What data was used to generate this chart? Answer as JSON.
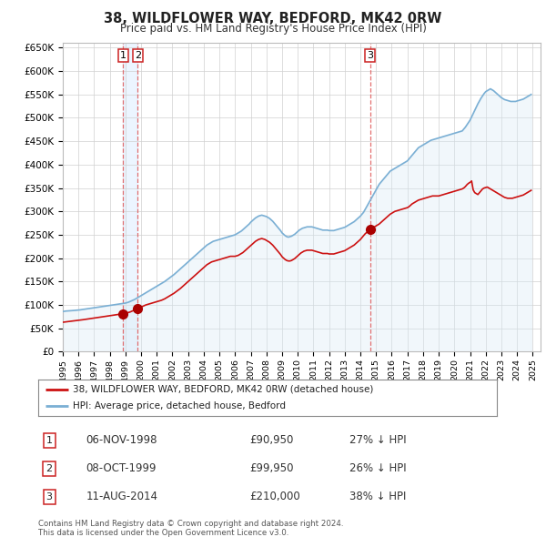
{
  "title": "38, WILDFLOWER WAY, BEDFORD, MK42 0RW",
  "subtitle": "Price paid vs. HM Land Registry's House Price Index (HPI)",
  "ylim": [
    0,
    660000
  ],
  "yticks": [
    0,
    50000,
    100000,
    150000,
    200000,
    250000,
    300000,
    350000,
    400000,
    450000,
    500000,
    550000,
    600000,
    650000
  ],
  "background_color": "#ffffff",
  "grid_color": "#d0d0d0",
  "hpi_color": "#7aafd4",
  "hpi_fill_color": "#d8eaf6",
  "price_color": "#cc1111",
  "sale_marker_color": "#aa0000",
  "vline_color": "#e06060",
  "vline_fill": "#ddeeff",
  "legend_label_price": "38, WILDFLOWER WAY, BEDFORD, MK42 0RW (detached house)",
  "legend_label_hpi": "HPI: Average price, detached house, Bedford",
  "transactions": [
    {
      "num": 1,
      "date": "06-NOV-1998",
      "price": 90950,
      "pct": "27% ↓ HPI",
      "x_year": 1998.84
    },
    {
      "num": 2,
      "date": "08-OCT-1999",
      "price": 99950,
      "pct": "26% ↓ HPI",
      "x_year": 1999.78
    },
    {
      "num": 3,
      "date": "11-AUG-2014",
      "price": 210000,
      "pct": "38% ↓ HPI",
      "x_year": 2014.61
    }
  ],
  "footer": "Contains HM Land Registry data © Crown copyright and database right 2024.\nThis data is licensed under the Open Government Licence v3.0.",
  "xlim": [
    1995.0,
    2025.5
  ],
  "x_tick_years": [
    1995,
    1996,
    1997,
    1998,
    1999,
    2000,
    2001,
    2002,
    2003,
    2004,
    2005,
    2006,
    2007,
    2008,
    2009,
    2010,
    2011,
    2012,
    2013,
    2014,
    2015,
    2016,
    2017,
    2018,
    2019,
    2020,
    2021,
    2022,
    2023,
    2024,
    2025
  ],
  "hpi_data_x": [
    1995.0,
    1995.1,
    1995.2,
    1995.3,
    1995.4,
    1995.5,
    1995.6,
    1995.7,
    1995.8,
    1995.9,
    1996.0,
    1996.1,
    1996.2,
    1996.3,
    1996.4,
    1996.5,
    1996.6,
    1996.7,
    1996.8,
    1996.9,
    1997.0,
    1997.1,
    1997.2,
    1997.3,
    1997.4,
    1997.5,
    1997.6,
    1997.7,
    1997.8,
    1997.9,
    1998.0,
    1998.1,
    1998.2,
    1998.3,
    1998.4,
    1998.5,
    1998.6,
    1998.7,
    1998.8,
    1998.9,
    1999.0,
    1999.1,
    1999.2,
    1999.3,
    1999.4,
    1999.5,
    1999.6,
    1999.7,
    1999.8,
    1999.9,
    2000.0,
    2000.1,
    2000.2,
    2000.3,
    2000.4,
    2000.5,
    2000.6,
    2000.7,
    2000.8,
    2000.9,
    2001.0,
    2001.1,
    2001.2,
    2001.3,
    2001.4,
    2001.5,
    2001.6,
    2001.7,
    2001.8,
    2001.9,
    2002.0,
    2002.1,
    2002.2,
    2002.3,
    2002.4,
    2002.5,
    2002.6,
    2002.7,
    2002.8,
    2002.9,
    2003.0,
    2003.1,
    2003.2,
    2003.3,
    2003.4,
    2003.5,
    2003.6,
    2003.7,
    2003.8,
    2003.9,
    2004.0,
    2004.1,
    2004.2,
    2004.3,
    2004.4,
    2004.5,
    2004.6,
    2004.7,
    2004.8,
    2004.9,
    2005.0,
    2005.1,
    2005.2,
    2005.3,
    2005.4,
    2005.5,
    2005.6,
    2005.7,
    2005.8,
    2005.9,
    2006.0,
    2006.1,
    2006.2,
    2006.3,
    2006.4,
    2006.5,
    2006.6,
    2006.7,
    2006.8,
    2006.9,
    2007.0,
    2007.1,
    2007.2,
    2007.3,
    2007.4,
    2007.5,
    2007.6,
    2007.7,
    2007.8,
    2007.9,
    2008.0,
    2008.1,
    2008.2,
    2008.3,
    2008.4,
    2008.5,
    2008.6,
    2008.7,
    2008.8,
    2008.9,
    2009.0,
    2009.1,
    2009.2,
    2009.3,
    2009.4,
    2009.5,
    2009.6,
    2009.7,
    2009.8,
    2009.9,
    2010.0,
    2010.1,
    2010.2,
    2010.3,
    2010.4,
    2010.5,
    2010.6,
    2010.7,
    2010.8,
    2010.9,
    2011.0,
    2011.1,
    2011.2,
    2011.3,
    2011.4,
    2011.5,
    2011.6,
    2011.7,
    2011.8,
    2011.9,
    2012.0,
    2012.1,
    2012.2,
    2012.3,
    2012.4,
    2012.5,
    2012.6,
    2012.7,
    2012.8,
    2012.9,
    2013.0,
    2013.1,
    2013.2,
    2013.3,
    2013.4,
    2013.5,
    2013.6,
    2013.7,
    2013.8,
    2013.9,
    2014.0,
    2014.1,
    2014.2,
    2014.3,
    2014.4,
    2014.5,
    2014.6,
    2014.7,
    2014.8,
    2014.9,
    2015.0,
    2015.1,
    2015.2,
    2015.3,
    2015.4,
    2015.5,
    2015.6,
    2015.7,
    2015.8,
    2015.9,
    2016.0,
    2016.1,
    2016.2,
    2016.3,
    2016.4,
    2016.5,
    2016.6,
    2016.7,
    2016.8,
    2016.9,
    2017.0,
    2017.1,
    2017.2,
    2017.3,
    2017.4,
    2017.5,
    2017.6,
    2017.7,
    2017.8,
    2017.9,
    2018.0,
    2018.1,
    2018.2,
    2018.3,
    2018.4,
    2018.5,
    2018.6,
    2018.7,
    2018.8,
    2018.9,
    2019.0,
    2019.1,
    2019.2,
    2019.3,
    2019.4,
    2019.5,
    2019.6,
    2019.7,
    2019.8,
    2019.9,
    2020.0,
    2020.1,
    2020.2,
    2020.3,
    2020.4,
    2020.5,
    2020.6,
    2020.7,
    2020.8,
    2020.9,
    2021.0,
    2021.1,
    2021.2,
    2021.3,
    2021.4,
    2021.5,
    2021.6,
    2021.7,
    2021.8,
    2021.9,
    2022.0,
    2022.1,
    2022.2,
    2022.3,
    2022.4,
    2022.5,
    2022.6,
    2022.7,
    2022.8,
    2022.9,
    2023.0,
    2023.1,
    2023.2,
    2023.3,
    2023.4,
    2023.5,
    2023.6,
    2023.7,
    2023.8,
    2023.9,
    2024.0,
    2024.1,
    2024.2,
    2024.3,
    2024.4,
    2024.5,
    2024.6,
    2024.7,
    2024.8,
    2024.9
  ],
  "hpi_data_y": [
    86000,
    86500,
    87000,
    87200,
    87500,
    87800,
    88000,
    88200,
    88500,
    88800,
    89000,
    89500,
    90000,
    90500,
    91000,
    91500,
    92000,
    92500,
    93000,
    93500,
    94000,
    94500,
    95000,
    95500,
    96000,
    96500,
    97000,
    97500,
    98000,
    98500,
    99000,
    99500,
    100000,
    100500,
    101000,
    101500,
    102000,
    102500,
    103000,
    103500,
    104000,
    105000,
    106000,
    107500,
    109000,
    110500,
    112000,
    114000,
    116000,
    118000,
    120000,
    122000,
    124000,
    126000,
    128000,
    130000,
    132000,
    134000,
    136000,
    138000,
    140000,
    142000,
    144000,
    146000,
    148000,
    150000,
    152500,
    155000,
    157500,
    160000,
    162500,
    165000,
    168000,
    171000,
    174000,
    177000,
    180000,
    183000,
    186000,
    189000,
    192000,
    195000,
    198000,
    201000,
    204000,
    207000,
    210000,
    213000,
    216000,
    219000,
    222000,
    225000,
    228000,
    230000,
    232000,
    234000,
    236000,
    237000,
    238000,
    239000,
    240000,
    241000,
    242000,
    243000,
    244000,
    245000,
    246000,
    247000,
    248000,
    249000,
    250000,
    252000,
    254000,
    256000,
    258000,
    261000,
    264000,
    267000,
    270000,
    273000,
    277000,
    280000,
    283000,
    286000,
    288000,
    290000,
    291000,
    292000,
    291000,
    290000,
    289000,
    287000,
    285000,
    282000,
    279000,
    275000,
    271000,
    267000,
    263000,
    259000,
    254000,
    251000,
    248000,
    246000,
    245000,
    246000,
    247000,
    249000,
    251000,
    254000,
    257000,
    260000,
    262000,
    264000,
    265000,
    266000,
    267000,
    267000,
    267000,
    267000,
    266000,
    265000,
    264000,
    263000,
    262000,
    261000,
    260000,
    260000,
    260000,
    260000,
    259000,
    259000,
    259000,
    259000,
    260000,
    261000,
    262000,
    263000,
    264000,
    265000,
    266000,
    268000,
    270000,
    272000,
    274000,
    276000,
    278000,
    281000,
    284000,
    287000,
    290000,
    294000,
    298000,
    304000,
    310000,
    316000,
    322000,
    328000,
    334000,
    340000,
    346000,
    352000,
    358000,
    362000,
    366000,
    370000,
    374000,
    378000,
    382000,
    386000,
    388000,
    390000,
    392000,
    394000,
    396000,
    398000,
    400000,
    402000,
    404000,
    406000,
    408000,
    412000,
    416000,
    420000,
    424000,
    428000,
    432000,
    436000,
    438000,
    440000,
    442000,
    444000,
    446000,
    448000,
    450000,
    452000,
    453000,
    454000,
    455000,
    456000,
    457000,
    458000,
    459000,
    460000,
    461000,
    462000,
    463000,
    464000,
    465000,
    466000,
    467000,
    468000,
    469000,
    470000,
    471000,
    472000,
    476000,
    480000,
    485000,
    490000,
    495000,
    502000,
    509000,
    516000,
    523000,
    530000,
    536000,
    542000,
    547000,
    552000,
    556000,
    558000,
    560000,
    562000,
    560000,
    558000,
    555000,
    552000,
    549000,
    546000,
    543000,
    541000,
    539000,
    538000,
    537000,
    536000,
    535000,
    535000,
    535000,
    535000,
    536000,
    537000,
    538000,
    539000,
    540000,
    542000,
    544000,
    546000,
    548000,
    550000
  ],
  "price_data_x": [
    1995.0,
    1995.1,
    1995.2,
    1995.3,
    1995.4,
    1995.5,
    1995.6,
    1995.7,
    1995.8,
    1995.9,
    1996.0,
    1996.1,
    1996.2,
    1996.3,
    1996.4,
    1996.5,
    1996.6,
    1996.7,
    1996.8,
    1996.9,
    1997.0,
    1997.1,
    1997.2,
    1997.3,
    1997.4,
    1997.5,
    1997.6,
    1997.7,
    1997.8,
    1997.9,
    1998.0,
    1998.1,
    1998.2,
    1998.3,
    1998.4,
    1998.5,
    1998.6,
    1998.7,
    1998.8,
    1998.9,
    1999.0,
    1999.1,
    1999.2,
    1999.3,
    1999.4,
    1999.5,
    1999.6,
    1999.7,
    1999.8,
    1999.9,
    2000.0,
    2000.1,
    2000.2,
    2000.3,
    2000.4,
    2000.5,
    2000.6,
    2000.7,
    2000.8,
    2000.9,
    2001.0,
    2001.1,
    2001.2,
    2001.3,
    2001.4,
    2001.5,
    2001.6,
    2001.7,
    2001.8,
    2001.9,
    2002.0,
    2002.1,
    2002.2,
    2002.3,
    2002.4,
    2002.5,
    2002.6,
    2002.7,
    2002.8,
    2002.9,
    2003.0,
    2003.1,
    2003.2,
    2003.3,
    2003.4,
    2003.5,
    2003.6,
    2003.7,
    2003.8,
    2003.9,
    2004.0,
    2004.1,
    2004.2,
    2004.3,
    2004.4,
    2004.5,
    2004.6,
    2004.7,
    2004.8,
    2004.9,
    2005.0,
    2005.1,
    2005.2,
    2005.3,
    2005.4,
    2005.5,
    2005.6,
    2005.7,
    2005.8,
    2005.9,
    2006.0,
    2006.1,
    2006.2,
    2006.3,
    2006.4,
    2006.5,
    2006.6,
    2006.7,
    2006.8,
    2006.9,
    2007.0,
    2007.1,
    2007.2,
    2007.3,
    2007.4,
    2007.5,
    2007.6,
    2007.7,
    2007.8,
    2007.9,
    2008.0,
    2008.1,
    2008.2,
    2008.3,
    2008.4,
    2008.5,
    2008.6,
    2008.7,
    2008.8,
    2008.9,
    2009.0,
    2009.1,
    2009.2,
    2009.3,
    2009.4,
    2009.5,
    2009.6,
    2009.7,
    2009.8,
    2009.9,
    2010.0,
    2010.1,
    2010.2,
    2010.3,
    2010.4,
    2010.5,
    2010.6,
    2010.7,
    2010.8,
    2010.9,
    2011.0,
    2011.1,
    2011.2,
    2011.3,
    2011.4,
    2011.5,
    2011.6,
    2011.7,
    2011.8,
    2011.9,
    2012.0,
    2012.1,
    2012.2,
    2012.3,
    2012.4,
    2012.5,
    2012.6,
    2012.7,
    2012.8,
    2012.9,
    2013.0,
    2013.1,
    2013.2,
    2013.3,
    2013.4,
    2013.5,
    2013.6,
    2013.7,
    2013.8,
    2013.9,
    2014.0,
    2014.1,
    2014.2,
    2014.3,
    2014.4,
    2014.5,
    2014.6,
    2014.7,
    2014.8,
    2014.9,
    2015.0,
    2015.1,
    2015.2,
    2015.3,
    2015.4,
    2015.5,
    2015.6,
    2015.7,
    2015.8,
    2015.9,
    2016.0,
    2016.1,
    2016.2,
    2016.3,
    2016.4,
    2016.5,
    2016.6,
    2016.7,
    2016.8,
    2016.9,
    2017.0,
    2017.1,
    2017.2,
    2017.3,
    2017.4,
    2017.5,
    2017.6,
    2017.7,
    2017.8,
    2017.9,
    2018.0,
    2018.1,
    2018.2,
    2018.3,
    2018.4,
    2018.5,
    2018.6,
    2018.7,
    2018.8,
    2018.9,
    2019.0,
    2019.1,
    2019.2,
    2019.3,
    2019.4,
    2019.5,
    2019.6,
    2019.7,
    2019.8,
    2019.9,
    2020.0,
    2020.1,
    2020.2,
    2020.3,
    2020.4,
    2020.5,
    2020.6,
    2020.7,
    2020.8,
    2020.9,
    2021.0,
    2021.1,
    2021.2,
    2021.3,
    2021.4,
    2021.5,
    2021.6,
    2021.7,
    2021.8,
    2021.9,
    2022.0,
    2022.1,
    2022.2,
    2022.3,
    2022.4,
    2022.5,
    2022.6,
    2022.7,
    2022.8,
    2022.9,
    2023.0,
    2023.1,
    2023.2,
    2023.3,
    2023.4,
    2023.5,
    2023.6,
    2023.7,
    2023.8,
    2023.9,
    2024.0,
    2024.1,
    2024.2,
    2024.3,
    2024.4,
    2024.5,
    2024.6,
    2024.7,
    2024.8,
    2024.9
  ],
  "price_data_y": [
    63000,
    63500,
    64000,
    64300,
    64700,
    65000,
    65400,
    65800,
    66200,
    66600,
    67000,
    67500,
    68000,
    68500,
    69000,
    69500,
    70000,
    70500,
    71000,
    71500,
    72000,
    72500,
    73000,
    73500,
    74000,
    74500,
    75000,
    75500,
    76000,
    76500,
    77000,
    77500,
    78000,
    78500,
    79000,
    79500,
    80000,
    80500,
    81000,
    81500,
    82000,
    83000,
    84000,
    85000,
    86500,
    88000,
    89500,
    91000,
    92500,
    94000,
    95500,
    97000,
    98500,
    100000,
    101000,
    102000,
    103000,
    104000,
    105000,
    106000,
    107000,
    108000,
    109000,
    110000,
    111500,
    113000,
    115000,
    117000,
    119000,
    121000,
    123000,
    125000,
    127500,
    130000,
    132500,
    135000,
    138000,
    141000,
    144000,
    147000,
    150000,
    153000,
    156000,
    159000,
    162000,
    165000,
    168000,
    171000,
    174000,
    177000,
    180000,
    183000,
    186000,
    188000,
    190000,
    192000,
    193000,
    194000,
    195000,
    196000,
    197000,
    198000,
    199000,
    200000,
    201000,
    202000,
    203000,
    204000,
    204000,
    204000,
    204000,
    205000,
    206000,
    208000,
    210000,
    212000,
    215000,
    218000,
    221000,
    224000,
    227000,
    230000,
    233000,
    236000,
    238000,
    240000,
    241000,
    242000,
    241000,
    240000,
    238000,
    236000,
    234000,
    231000,
    228000,
    224000,
    220000,
    216000,
    212000,
    208000,
    203000,
    200000,
    197000,
    195000,
    194000,
    194000,
    195000,
    197000,
    199000,
    202000,
    205000,
    208000,
    211000,
    213000,
    215000,
    216000,
    217000,
    217000,
    217000,
    217000,
    216000,
    215000,
    214000,
    213000,
    212000,
    211000,
    210000,
    210000,
    210000,
    210000,
    209000,
    209000,
    209000,
    209000,
    210000,
    211000,
    212000,
    213000,
    214000,
    215000,
    216000,
    218000,
    220000,
    222000,
    224000,
    226000,
    228000,
    231000,
    234000,
    237000,
    240000,
    244000,
    248000,
    252000,
    255000,
    258000,
    261000,
    263000,
    265000,
    267000,
    269000,
    271000,
    273000,
    276000,
    279000,
    282000,
    285000,
    288000,
    291000,
    294000,
    296000,
    298000,
    300000,
    301000,
    302000,
    303000,
    304000,
    305000,
    306000,
    307000,
    308000,
    310000,
    313000,
    316000,
    318000,
    320000,
    322000,
    324000,
    325000,
    326000,
    327000,
    328000,
    329000,
    330000,
    331000,
    332000,
    333000,
    333000,
    333000,
    333000,
    333000,
    334000,
    335000,
    336000,
    337000,
    338000,
    339000,
    340000,
    341000,
    342000,
    343000,
    344000,
    345000,
    346000,
    347000,
    348000,
    350000,
    353000,
    357000,
    360000,
    362000,
    365000,
    346000,
    340000,
    338000,
    336000,
    340000,
    344000,
    348000,
    350000,
    351000,
    352000,
    350000,
    348000,
    346000,
    344000,
    342000,
    340000,
    338000,
    336000,
    334000,
    332000,
    330000,
    329000,
    328000,
    328000,
    328000,
    328000,
    329000,
    330000,
    331000,
    332000,
    333000,
    334000,
    335000,
    337000,
    339000,
    341000,
    343000,
    345000
  ]
}
